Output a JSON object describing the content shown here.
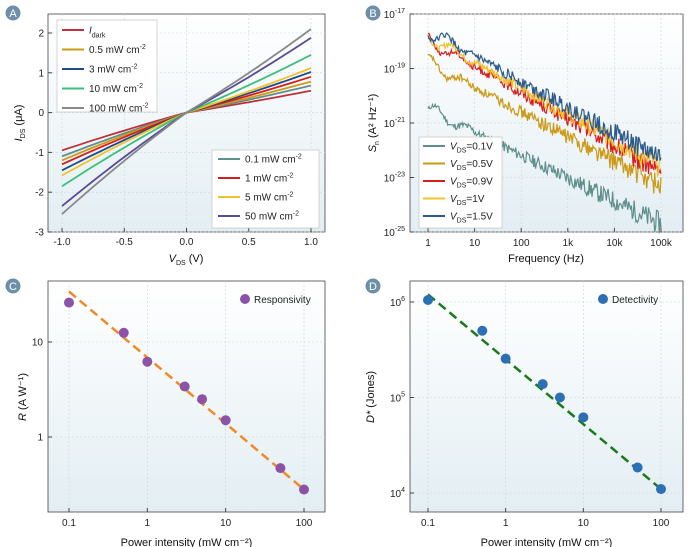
{
  "colors": {
    "dark": "#c0303a",
    "p0_1": "#5f8f8c",
    "p0_5": "#cc9a16",
    "p1": "#d81d1d",
    "p3": "#1f4a86",
    "p5": "#f2c12e",
    "p10": "#3cbf7a",
    "p50": "#5b4a96",
    "p100": "#888888",
    "v1_5": "#2c5a8c",
    "responsivity": "#8b52a8",
    "resp_fit": "#f08a24",
    "detectivity": "#2d6fb5",
    "det_fit": "#1a7a1a",
    "badge": "#6e8fa8"
  },
  "chart_data": [
    {
      "panel": "A",
      "type": "line",
      "xlabel_main": "V",
      "xlabel_sub": "DS",
      "xlabel_unit": " (V)",
      "ylabel_main": "I",
      "ylabel_sub": "DS",
      "ylabel_unit": " (μA)",
      "xlim": [
        -1.0,
        1.0
      ],
      "ylim": [
        -3,
        2.2
      ],
      "xticks": [
        "-1.0",
        "-0.5",
        "0.0",
        "0.5",
        "1.0"
      ],
      "yticks": [
        "-3",
        "-2",
        "-1",
        "0",
        "1",
        "2"
      ],
      "series": [
        {
          "name": "I",
          "sub": "dark",
          "sup": "",
          "color": "#c0303a",
          "i_neg": -0.95,
          "i_pos": 0.55
        },
        {
          "name": "0.1 mW cm",
          "sup": "-2",
          "color": "#5f8f8c",
          "i_neg": -1.1,
          "i_pos": 0.68
        },
        {
          "name": "0.5 mW cm",
          "sup": "-2",
          "color": "#cc9a16",
          "i_neg": -1.2,
          "i_pos": 0.78
        },
        {
          "name": "1 mW cm",
          "sup": "-2",
          "color": "#d81d1d",
          "i_neg": -1.3,
          "i_pos": 0.9
        },
        {
          "name": "3 mW cm",
          "sup": "-2",
          "color": "#1f4a86",
          "i_neg": -1.45,
          "i_pos": 1.02
        },
        {
          "name": "5 mW cm",
          "sup": "-2",
          "color": "#f2c12e",
          "i_neg": -1.58,
          "i_pos": 1.12
        },
        {
          "name": "10 mW cm",
          "sup": "-2",
          "color": "#3cbf7a",
          "i_neg": -1.85,
          "i_pos": 1.45
        },
        {
          "name": "50 mW cm",
          "sup": "-2",
          "color": "#5b4a96",
          "i_neg": -2.35,
          "i_pos": 1.88
        },
        {
          "name": "100 mW cm",
          "sup": "-2",
          "color": "#888888",
          "i_neg": -2.55,
          "i_pos": 2.1
        }
      ],
      "legend_left": [
        0,
        2,
        4,
        6,
        8
      ],
      "legend_right": [
        1,
        3,
        5,
        7
      ]
    },
    {
      "panel": "B",
      "type": "line",
      "xlabel": "Frequency (Hz)",
      "ylabel_main": "S",
      "ylabel_sub": "n",
      "ylabel_unit": " (A² Hz⁻¹)",
      "xscale": "log",
      "yscale": "log",
      "xlim": [
        0.5,
        150000
      ],
      "ylim": [
        1e-25,
        1e-17
      ],
      "xticks": [
        {
          "v": 1,
          "t": "1"
        },
        {
          "v": 10,
          "t": "10"
        },
        {
          "v": 100,
          "t": "100"
        },
        {
          "v": 1000,
          "t": "1k"
        },
        {
          "v": 10000,
          "t": "10k"
        },
        {
          "v": 100000,
          "t": "100k"
        }
      ],
      "yticks": [
        {
          "v": -17,
          "t": "-17"
        },
        {
          "v": -19,
          "t": "-19"
        },
        {
          "v": -21,
          "t": "-21"
        },
        {
          "v": -23,
          "t": "-23"
        },
        {
          "v": -25,
          "t": "-25"
        }
      ],
      "ytick_base": "10",
      "series": [
        {
          "name": "V",
          "sub": "DS",
          "val": "=0.1V",
          "color": "#5f8f8c",
          "start": -20.5,
          "end": -24.7
        },
        {
          "name": "V",
          "sub": "DS",
          "val": "=0.5V",
          "color": "#cc9a16",
          "start": -18.8,
          "end": -23.3
        },
        {
          "name": "V",
          "sub": "DS",
          "val": "=0.9V",
          "color": "#d81d1d",
          "start": -17.95,
          "end": -22.8
        },
        {
          "name": "V",
          "sub": "DS",
          "val": "=1V",
          "color": "#f2c12e",
          "start": -17.8,
          "end": -22.6
        },
        {
          "name": "V",
          "sub": "DS",
          "val": "=1.5V",
          "color": "#2c5a8c",
          "start": -17.6,
          "end": -22.3
        }
      ]
    },
    {
      "panel": "C",
      "type": "scatter",
      "xlabel": "Power intensity (mW cm⁻²)",
      "ylabel_main": "R",
      "ylabel_unit": " (A W⁻¹)",
      "xscale": "log",
      "yscale": "log",
      "xlim": [
        0.055,
        180
      ],
      "ylim": [
        0.2,
        35
      ],
      "xticks": [
        {
          "v": 0.1,
          "t": "0.1"
        },
        {
          "v": 1,
          "t": "1"
        },
        {
          "v": 10,
          "t": "10"
        },
        {
          "v": 100,
          "t": "100"
        }
      ],
      "yticks": [
        {
          "v": 1,
          "t": "1"
        },
        {
          "v": 10,
          "t": "10"
        }
      ],
      "legend": "Responsivity",
      "x": [
        0.1,
        0.5,
        1,
        3,
        5,
        10,
        50,
        100
      ],
      "y": [
        26,
        12.5,
        6.2,
        3.4,
        2.5,
        1.5,
        0.47,
        0.28
      ],
      "fit": [
        [
          0.1,
          34
        ],
        [
          100,
          0.28
        ]
      ]
    },
    {
      "panel": "D",
      "type": "scatter",
      "xlabel": "Power intensity (mW cm⁻²)",
      "ylabel_main": "D*",
      "ylabel_unit": " (Jones)",
      "xscale": "log",
      "yscale": "log",
      "xlim": [
        0.055,
        180
      ],
      "ylim": [
        8000,
        1500000
      ],
      "xticks": [
        {
          "v": 0.1,
          "t": "0.1"
        },
        {
          "v": 1,
          "t": "1"
        },
        {
          "v": 10,
          "t": "10"
        },
        {
          "v": 100,
          "t": "100"
        }
      ],
      "yticks": [
        {
          "v": 4,
          "t": "4"
        },
        {
          "v": 5,
          "t": "5"
        },
        {
          "v": 6,
          "t": "6"
        }
      ],
      "ytick_base": "10",
      "legend": "Detectivity",
      "x": [
        0.1,
        0.5,
        1,
        3,
        5,
        10,
        50,
        100
      ],
      "y": [
        1050000,
        500000,
        255000,
        138000,
        100000,
        62000,
        18500,
        11000
      ],
      "fit": [
        [
          0.1,
          1200000
        ],
        [
          100,
          11000
        ]
      ]
    }
  ]
}
